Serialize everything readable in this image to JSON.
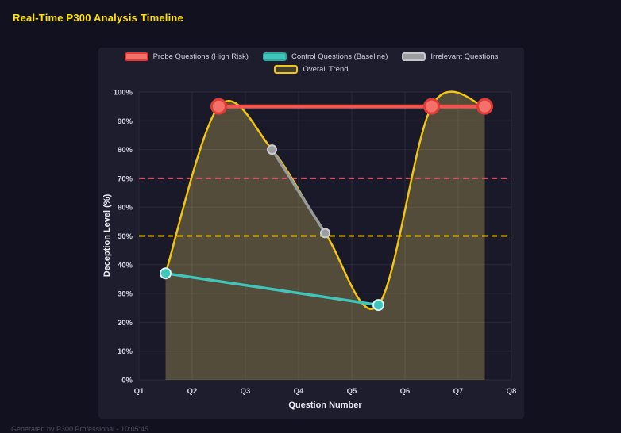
{
  "page": {
    "title": "Real-Time P300 Analysis Timeline",
    "title_color": "#ffe100",
    "bg": "#111120",
    "footer": "Generated by P300 Professional - 10:05:45"
  },
  "chart_data": {
    "type": "line",
    "title": "Real-Time P300 Analysis Timeline",
    "xlabel": "Question Number",
    "ylabel": "Deception Level (%)",
    "x_ticks": [
      "Q1",
      "Q2",
      "Q3",
      "Q4",
      "Q5",
      "Q6",
      "Q7",
      "Q8"
    ],
    "x_range": [
      1,
      8
    ],
    "y_ticks": [
      "0%",
      "10%",
      "20%",
      "30%",
      "40%",
      "50%",
      "60%",
      "70%",
      "80%",
      "90%",
      "100%"
    ],
    "ylim": [
      0,
      100
    ],
    "grid": true,
    "grid_color": "rgba(255,255,255,0.07)",
    "panel_bg": "#1d1d2e",
    "plot_bg": "#191929",
    "legend_position": "top",
    "legend_rows": [
      [
        0,
        1,
        2
      ],
      [
        3
      ]
    ],
    "series": [
      {
        "name": "Probe Questions (High Risk)",
        "color": "#f0564f",
        "line_width": 5,
        "x": [
          2.5,
          6.5,
          7.5
        ],
        "values": [
          95,
          95,
          95
        ],
        "point_fill": "#f4716a",
        "point_stroke": "#e03b36",
        "point_stroke_width": 3,
        "point_radius": 9,
        "legend_fill": "#f4716a",
        "legend_border": "#e03b36"
      },
      {
        "name": "Control Questions (Baseline)",
        "color": "#3fc5ba",
        "line_width": 3.5,
        "x": [
          1.5,
          5.5
        ],
        "values": [
          37,
          26
        ],
        "point_fill": "#3fc5ba",
        "point_stroke": "#d7f5f2",
        "point_stroke_width": 2,
        "point_radius": 6.5,
        "legend_fill": "#3fc5ba",
        "legend_border": "#2ba79d"
      },
      {
        "name": "Irrelevant Questions",
        "color": "#97999b",
        "line_width": 3.5,
        "x": [
          3.5,
          4.5
        ],
        "values": [
          80,
          51
        ],
        "point_fill": "#9b9da0",
        "point_stroke": "#cbced1",
        "point_stroke_width": 2,
        "point_radius": 5.5,
        "legend_fill": "#9b9da0",
        "legend_border": "#c4c7ca"
      },
      {
        "name": "Overall Trend",
        "color": "#f2c511",
        "line_width": 2.5,
        "smooth": true,
        "fill": "rgba(233,208,105,0.28)",
        "x": [
          1.5,
          2.5,
          3.5,
          4.5,
          5.5,
          6.5,
          7.5
        ],
        "values": [
          37,
          95,
          80,
          51,
          26,
          95,
          95
        ],
        "point_radius": 0,
        "legend_fill": "rgba(242,197,17,0.2)",
        "legend_border": "#f2c511"
      }
    ],
    "thresholds": [
      {
        "value": 70,
        "color": "#e8506b",
        "dash": "7 5",
        "width": 2
      },
      {
        "value": 50,
        "color": "#f2c511",
        "dash": "7 5",
        "width": 2
      }
    ]
  }
}
